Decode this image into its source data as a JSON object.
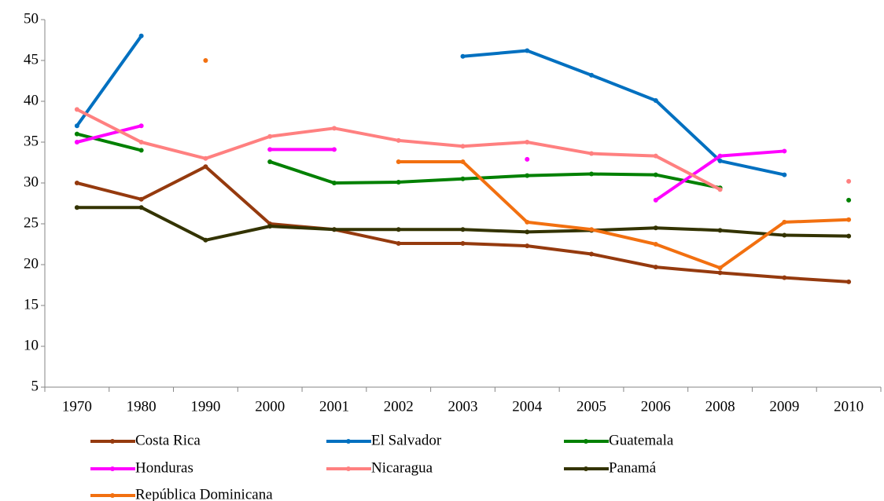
{
  "chart_data": {
    "type": "line",
    "categories": [
      "1970",
      "1980",
      "1990",
      "2000",
      "2001",
      "2002",
      "2003",
      "2004",
      "2005",
      "2006",
      "2008",
      "2009",
      "2010"
    ],
    "series": [
      {
        "name": "Costa Rica",
        "color": "#953a0e",
        "values": [
          30,
          28,
          32,
          25,
          24.3,
          22.6,
          22.6,
          22.3,
          21.3,
          19.7,
          19,
          18.4,
          17.9
        ]
      },
      {
        "name": "El Salvador",
        "color": "#0070c0",
        "values": [
          37,
          48,
          null,
          null,
          null,
          null,
          45.5,
          46.2,
          43.2,
          40.1,
          32.7,
          31,
          null
        ]
      },
      {
        "name": "Guatemala",
        "color": "#008000",
        "values": [
          36,
          34,
          null,
          32.6,
          30,
          30.1,
          30.5,
          30.9,
          31.1,
          31,
          29.4,
          null,
          27.9
        ]
      },
      {
        "name": "Honduras",
        "color": "#ff00ff",
        "values": [
          35,
          37,
          null,
          34.1,
          34.1,
          null,
          null,
          32.9,
          null,
          27.9,
          33.3,
          33.9,
          null
        ]
      },
      {
        "name": "Nicaragua",
        "color": "#ff8080",
        "values": [
          39,
          35,
          33,
          35.7,
          36.7,
          35.2,
          34.5,
          35,
          33.6,
          33.3,
          29.2,
          null,
          30.2
        ]
      },
      {
        "name": "Panamá",
        "color": "#333300",
        "values": [
          27,
          27,
          23,
          24.7,
          24.3,
          24.3,
          24.3,
          24,
          24.2,
          24.5,
          24.2,
          23.6,
          23.5
        ]
      },
      {
        "name": "República Dominicana",
        "color": "#f27010",
        "values": [
          null,
          null,
          45,
          null,
          null,
          32.6,
          32.6,
          25.2,
          24.3,
          22.5,
          19.6,
          25.2,
          25.5
        ]
      }
    ],
    "ylim": [
      5,
      50
    ],
    "yticks": [
      5,
      10,
      15,
      20,
      25,
      30,
      35,
      40,
      45,
      50
    ],
    "grid": false,
    "legend": "bottom"
  }
}
